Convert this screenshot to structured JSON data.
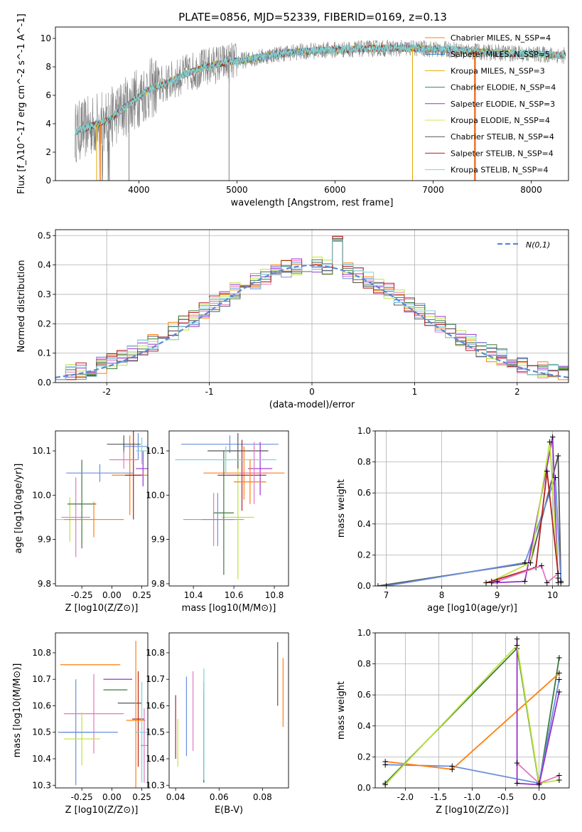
{
  "title": "PLATE=0856, MJD=52339, FIBERID=0169, z=0.13",
  "colors": {
    "models": [
      "#ff7f0e",
      "#1f77b4",
      "#e3a600",
      "#2e8b57",
      "#9932cc",
      "#d4e84a",
      "#555555",
      "#b22222",
      "#7fd3d8"
    ],
    "data": "#808080",
    "pts": [
      "#ff7f0e",
      "#6a8fdc",
      "#e377c2",
      "#9932cc",
      "#bde33a",
      "#3d7a3d",
      "#555555",
      "#b22222",
      "#7fd3d8"
    ]
  },
  "legend": [
    "Chabrier MILES, N_SSP=4",
    "Salpeter MILES, N_SSP=5",
    "Kroupa MILES, N_SSP=3",
    "Chabrier ELODIE, N_SSP=4",
    "Salpeter ELODIE, N_SSP=3",
    "Kroupa ELODIE, N_SSP=4",
    "Chabrier STELIB, N_SSP=4",
    "Salpeter STELIB, N_SSP=4",
    "Kroupa STELIB, N_SSP=4"
  ],
  "chart_data": [
    {
      "type": "line",
      "id": "spectrum",
      "xlabel": "wavelength [Angstrom, rest frame]",
      "ylabel": "Flux [f_λ10^-17 erg cm^-2 s^-1 A^-1]",
      "xlim": [
        3150,
        8380
      ],
      "ylim": [
        0,
        10.8
      ],
      "xticks": [
        4000,
        5000,
        6000,
        7000,
        8000
      ],
      "yticks": [
        0,
        2,
        4,
        6,
        8,
        10
      ],
      "continuum": {
        "x": [
          3350,
          3500,
          3700,
          3900,
          4100,
          4300,
          4500,
          4800,
          5100,
          5400,
          5700,
          6000,
          6400,
          6800,
          7200,
          7600,
          8000,
          8350
        ],
        "y": [
          3.4,
          3.8,
          4.3,
          5.4,
          6.4,
          6.9,
          7.6,
          8.2,
          8.5,
          8.9,
          9.1,
          9.2,
          9.3,
          9.3,
          9.2,
          9.0,
          8.9,
          8.8
        ]
      }
    },
    {
      "type": "bar",
      "id": "residuals",
      "xlabel": "(data-model)/error",
      "ylabel": "Normed distribution",
      "xlim": [
        -2.5,
        2.5
      ],
      "ylim": [
        0,
        0.52
      ],
      "xticks": [
        -2,
        -1,
        0,
        1,
        2
      ],
      "yticks": [
        0.0,
        0.1,
        0.2,
        0.3,
        0.4,
        0.5
      ],
      "bin_width": 0.1,
      "legend": "N(0,1)"
    },
    {
      "type": "scatter",
      "id": "z_age",
      "xlabel": "Z [log10(Z/Z⊙)]",
      "ylabel": "age [log10(age/yr)]",
      "xlim": [
        -0.47,
        0.3
      ],
      "ylim": [
        9.795,
        10.145
      ],
      "xticks": [
        -0.25,
        0.0,
        0.25
      ],
      "yticks": [
        9.8,
        9.9,
        10.0,
        10.1
      ]
    },
    {
      "type": "scatter",
      "id": "mass_age",
      "xlabel": "mass [log10(M/M⊙)]",
      "ylabel": "",
      "xlim": [
        10.28,
        10.87
      ],
      "ylim": [
        9.795,
        10.145
      ],
      "xticks": [
        10.4,
        10.6,
        10.8
      ],
      "yticks": [
        9.8,
        9.9,
        10.0,
        10.1
      ]
    },
    {
      "type": "line",
      "id": "age_weight",
      "xlabel": "age [log10(age/yr)]",
      "ylabel": "mass weight",
      "xlim": [
        6.8,
        10.3
      ],
      "ylim": [
        0,
        1.0
      ],
      "xticks": [
        7,
        8,
        9,
        10
      ],
      "yticks": [
        0.0,
        0.2,
        0.4,
        0.6,
        0.8,
        1.0
      ],
      "series": [
        {
          "x": [
            6.85,
            9.6,
            10.1,
            10.15
          ],
          "y": [
            0.0,
            0.15,
            0.84,
            0.02
          ]
        },
        {
          "x": [
            7.0,
            9.5,
            10.05,
            10.15
          ],
          "y": [
            0.0,
            0.15,
            0.7,
            0.03
          ]
        },
        {
          "x": [
            8.9,
            9.5,
            10.0,
            10.1
          ],
          "y": [
            0.02,
            0.03,
            0.96,
            0.02
          ]
        },
        {
          "x": [
            8.9,
            9.6,
            9.95,
            10.1
          ],
          "y": [
            0.03,
            0.15,
            0.93,
            0.05
          ]
        },
        {
          "x": [
            8.8,
            9.7,
            9.9,
            10.1
          ],
          "y": [
            0.02,
            0.12,
            0.74,
            0.08
          ]
        },
        {
          "x": [
            9.0,
            9.8,
            9.9,
            10.1
          ],
          "y": [
            0.03,
            0.13,
            0.02,
            0.08
          ]
        }
      ]
    },
    {
      "type": "scatter",
      "id": "z_mass",
      "xlabel": "Z [log10(Z/Z⊙)]",
      "ylabel": "mass [log10(M/M⊙)]",
      "xlim": [
        -0.47,
        0.3
      ],
      "ylim": [
        10.29,
        10.875
      ],
      "xticks": [
        -0.25,
        0.0,
        0.25
      ],
      "yticks": [
        10.3,
        10.4,
        10.5,
        10.6,
        10.7,
        10.8
      ]
    },
    {
      "type": "scatter",
      "id": "ebv_mass",
      "xlabel": "E(B-V)",
      "ylabel": "",
      "xlim": [
        0.037,
        0.092
      ],
      "ylim": [
        10.29,
        10.875
      ],
      "xticks": [
        0.04,
        0.06,
        0.08
      ],
      "yticks": [
        10.3,
        10.4,
        10.5,
        10.6,
        10.7,
        10.8
      ]
    },
    {
      "type": "line",
      "id": "z_weight",
      "xlabel": "Z [log10(Z/Z⊙)]",
      "ylabel": "mass weight",
      "xlim": [
        -2.45,
        0.45
      ],
      "ylim": [
        0,
        1.0
      ],
      "xticks": [
        -2.0,
        -1.5,
        -1.0,
        -0.5,
        0.0
      ],
      "yticks": [
        0.0,
        0.2,
        0.4,
        0.6,
        0.8,
        1.0
      ],
      "series": [
        {
          "x": [
            -2.3,
            -0.33,
            0.0,
            0.3
          ],
          "y": [
            0.03,
            0.9,
            0.02,
            0.84
          ]
        },
        {
          "x": [
            -2.3,
            -1.3,
            0.0,
            0.3
          ],
          "y": [
            0.15,
            0.14,
            0.03,
            0.7
          ]
        },
        {
          "x": [
            -2.3,
            -1.3,
            0.3
          ],
          "y": [
            0.17,
            0.12,
            0.74
          ]
        },
        {
          "x": [
            -0.33,
            -0.33,
            0.0,
            0.3
          ],
          "y": [
            0.96,
            0.03,
            0.02,
            0.62
          ]
        },
        {
          "x": [
            -2.3,
            -0.33,
            0.0,
            0.3
          ],
          "y": [
            0.02,
            0.92,
            0.03,
            0.05
          ]
        },
        {
          "x": [
            -0.33,
            0.0,
            0.3
          ],
          "y": [
            0.16,
            0.03,
            0.08
          ]
        }
      ]
    }
  ]
}
